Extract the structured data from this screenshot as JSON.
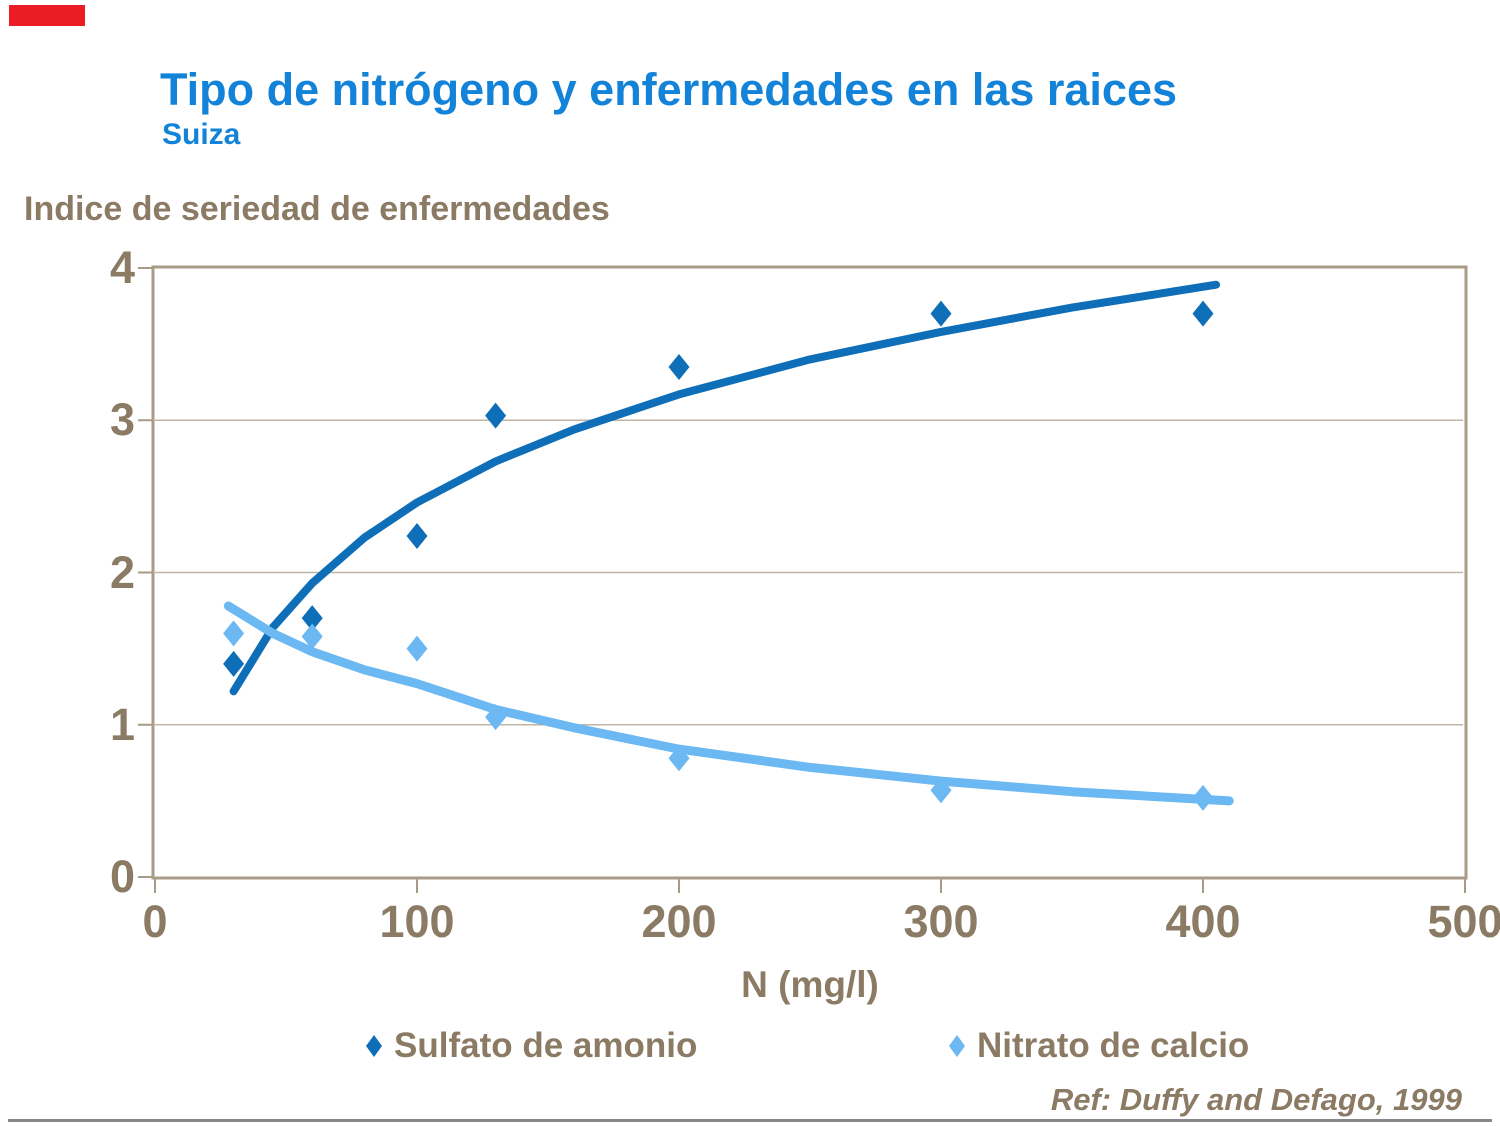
{
  "accent_bar_color": "#EC1C24",
  "header": {
    "title": "Tipo de nitrógeno y enfermedades en las raices",
    "subtitle": "Suiza",
    "title_color": "#1283D8"
  },
  "footer": {
    "reference": "Ref: Duffy and Defago, 1999",
    "divider_color": "#85878B"
  },
  "chart_data": {
    "type": "scatter",
    "title": "Tipo de nitrógeno y enfermedades en las raices",
    "subtitle": "Suiza",
    "ylabel": "Indice de seriedad de enfermedades",
    "xlabel": "N (mg/l)",
    "xlim": [
      0,
      500
    ],
    "ylim": [
      0,
      4
    ],
    "grid": "horizontal-only",
    "legend_position": "bottom",
    "x_ticks": [
      {
        "value": 0,
        "label": "0"
      },
      {
        "value": 100,
        "label": "100"
      },
      {
        "value": 200,
        "label": "200"
      },
      {
        "value": 300,
        "label": "300"
      },
      {
        "value": 400,
        "label": "400"
      },
      {
        "value": 500,
        "label": "500"
      }
    ],
    "y_ticks": [
      {
        "value": 0,
        "label": "0"
      },
      {
        "value": 1,
        "label": "1"
      },
      {
        "value": 2,
        "label": "2"
      },
      {
        "value": 3,
        "label": "3"
      },
      {
        "value": 4,
        "label": "4"
      }
    ],
    "y_gridlines": [
      1,
      2,
      3
    ],
    "colors": {
      "frame": "#A89B88",
      "grid": "#BFB5A6",
      "text": "#8B7B64"
    },
    "series": [
      {
        "name": "Sulfato de amonio",
        "color": "#0E6EB8",
        "marker": "diamond",
        "line_width": 8,
        "points": [
          [
            30,
            1.4
          ],
          [
            60,
            1.7
          ],
          [
            100,
            2.24
          ],
          [
            130,
            3.03
          ],
          [
            200,
            3.35
          ],
          [
            300,
            3.7
          ],
          [
            400,
            3.7
          ]
        ],
        "trend": [
          [
            30,
            1.22
          ],
          [
            45,
            1.64
          ],
          [
            60,
            1.93
          ],
          [
            80,
            2.23
          ],
          [
            100,
            2.46
          ],
          [
            130,
            2.73
          ],
          [
            160,
            2.94
          ],
          [
            200,
            3.17
          ],
          [
            250,
            3.4
          ],
          [
            300,
            3.58
          ],
          [
            350,
            3.74
          ],
          [
            405,
            3.89
          ]
        ]
      },
      {
        "name": "Nitrato de calcio",
        "color": "#6CB8F2",
        "marker": "diamond",
        "line_width": 9,
        "points": [
          [
            30,
            1.6
          ],
          [
            60,
            1.58
          ],
          [
            100,
            1.5
          ],
          [
            130,
            1.05
          ],
          [
            200,
            0.78
          ],
          [
            300,
            0.57
          ],
          [
            400,
            0.52
          ]
        ],
        "trend": [
          [
            28,
            1.78
          ],
          [
            45,
            1.6
          ],
          [
            60,
            1.48
          ],
          [
            80,
            1.36
          ],
          [
            100,
            1.27
          ],
          [
            130,
            1.1
          ],
          [
            160,
            0.98
          ],
          [
            200,
            0.84
          ],
          [
            250,
            0.72
          ],
          [
            300,
            0.63
          ],
          [
            350,
            0.56
          ],
          [
            410,
            0.5
          ]
        ]
      }
    ]
  }
}
